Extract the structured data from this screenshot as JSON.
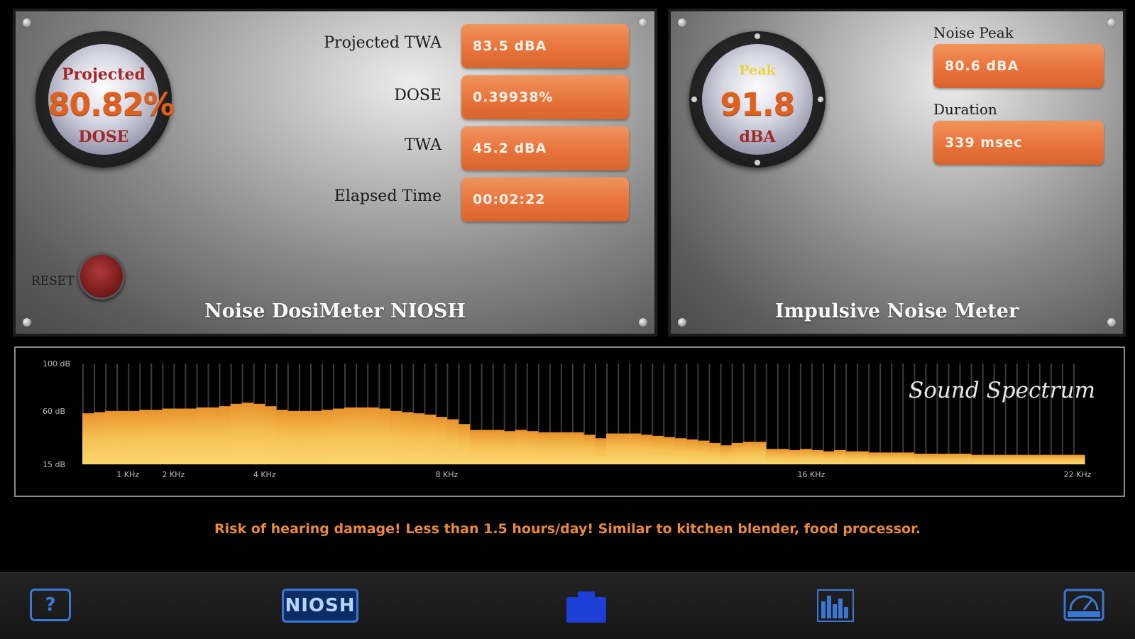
{
  "dosimeter": {
    "title": "Noise DosiMeter NIOSH",
    "gauge": {
      "top_label": "Projected",
      "value": "80.82%",
      "bottom_label": "DOSE"
    },
    "fields": [
      {
        "label": "Projected TWA",
        "value": "83.5 dBA"
      },
      {
        "label": "DOSE",
        "value": "0.39938%"
      },
      {
        "label": "TWA",
        "value": "45.2 dBA"
      },
      {
        "label": "Elapsed Time",
        "value": "00:02:22"
      }
    ],
    "reset_label": "RESET"
  },
  "impulsive": {
    "title": "Impulsive Noise Meter",
    "gauge": {
      "top_label": "Peak",
      "value": "91.8",
      "bottom_label": "dBA"
    },
    "fields": [
      {
        "label": "Noise Peak",
        "value": "80.6 dBA"
      },
      {
        "label": "Duration",
        "value": "339 msec"
      }
    ]
  },
  "spectrum": {
    "title": "Sound Spectrum",
    "y_ticks": [
      "100 dB",
      "60 dB",
      "15 dB"
    ],
    "x_ticks": [
      {
        "label": "1 KHz",
        "khz": 1
      },
      {
        "label": "2 KHz",
        "khz": 2
      },
      {
        "label": "4 KHz",
        "khz": 4
      },
      {
        "label": "8 KHz",
        "khz": 8
      },
      {
        "label": "16 KHz",
        "khz": 16
      },
      {
        "label": "22 KHz",
        "khz": 22
      }
    ],
    "bar_count": 88,
    "levels_db": [
      58,
      59,
      60,
      60,
      60,
      61,
      61,
      62,
      62,
      62,
      63,
      63,
      64,
      66,
      67,
      66,
      64,
      61,
      60,
      60,
      60,
      61,
      62,
      63,
      63,
      63,
      62,
      60,
      59,
      58,
      57,
      55,
      53,
      49,
      44,
      44,
      44,
      43,
      44,
      43,
      42,
      42,
      42,
      42,
      40,
      37,
      41,
      41,
      41,
      40,
      39,
      38,
      37,
      36,
      35,
      33,
      31,
      33,
      34,
      34,
      28,
      28,
      27,
      28,
      27,
      26,
      27,
      26,
      26,
      25,
      25,
      25,
      25,
      24,
      24,
      24,
      24,
      24,
      23,
      23,
      23,
      23,
      23,
      23,
      23,
      23,
      23,
      23
    ]
  },
  "warning_text": "Risk of hearing damage! Less than 1.5 hours/day! Similar to kitchen blender, food processor.",
  "colors": {
    "accent_orange": "#e8743c",
    "warning": "#e88a3e",
    "tab_blue": "#3a78d6",
    "spectrum_fill": "#f5b544"
  },
  "tabbar": {
    "help_label": "?",
    "niosh_label": "NIOSH",
    "icons": [
      "help-icon",
      "niosh-icon",
      "camera-icon",
      "spectrum-icon",
      "meter-icon"
    ]
  }
}
